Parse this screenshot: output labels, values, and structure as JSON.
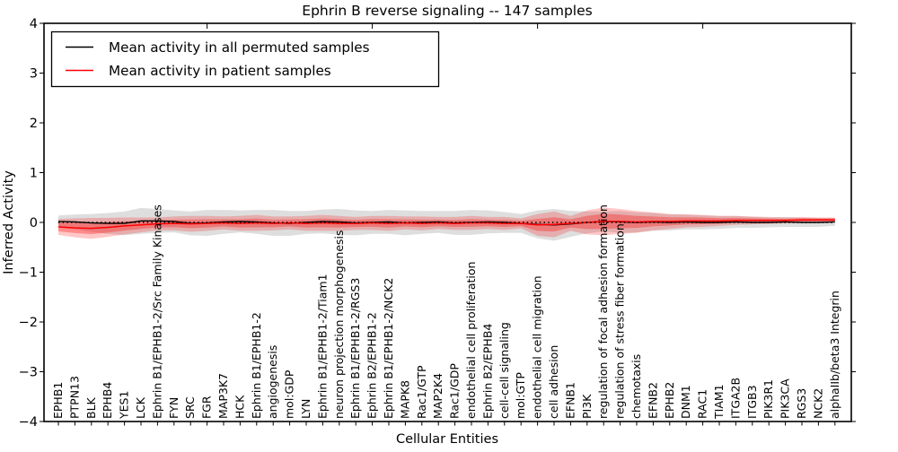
{
  "chart_data": {
    "type": "line",
    "title": "Ephrin B reverse signaling -- 147 samples",
    "xlabel": "Cellular Entities",
    "ylabel": "Inferred Activity",
    "ylim": [
      -4,
      4
    ],
    "yticks": [
      4,
      3,
      2,
      1,
      0,
      -1,
      -2,
      -3,
      -4
    ],
    "top_ticks": [
      10,
      20,
      30,
      40
    ],
    "grid": false,
    "legend_position": "upper left",
    "zero_reference_line": "black dotted at y=0",
    "categories": [
      "EPHB1",
      "PTPN13",
      "BLK",
      "EPHB4",
      "YES1",
      "LCK",
      "Ephrin B1/EPHB1-2/Src Family Kinases",
      "FYN",
      "SRC",
      "FGR",
      "MAP3K7",
      "HCK",
      "Ephrin B1/EPHB1-2",
      "angiogenesis",
      "mol:GDP",
      "LYN",
      "Ephrin B1/EPHB1-2/Tiam1",
      "neuron projection morphogenesis",
      "Ephrin B1/EPHB1-2/RGS3",
      "Ephrin B2/EPHB1-2",
      "Ephrin B1/EPHB1-2/NCK2",
      "MAPK8",
      "Rac1/GTP",
      "MAP2K4",
      "Rac1/GDP",
      "endothelial cell proliferation",
      "Ephrin B2/EPHB4",
      "cell-cell signaling",
      "mol:GTP",
      "endothelial cell migration",
      "cell adhesion",
      "EFNB1",
      "PI3K",
      "regulation of focal adhesion formation",
      "regulation of stress fiber formation",
      "chemotaxis",
      "EFNB2",
      "EPHB2",
      "DNM1",
      "RAC1",
      "TIAM1",
      "ITGA2B",
      "ITGB3",
      "PIK3R1",
      "PIK3CA",
      "RGS3",
      "NCK2",
      "alphaIIb/beta3 Integrin"
    ],
    "series": [
      {
        "name": "Mean activity in all permuted samples",
        "color": "#000000",
        "band_color": "rgba(0,0,0,0.13)",
        "values": [
          0.02,
          0.01,
          -0.01,
          -0.02,
          -0.02,
          0.03,
          0.03,
          0.02,
          -0.02,
          -0.01,
          0.01,
          0.02,
          0.01,
          -0.01,
          -0.02,
          0.0,
          0.02,
          0.01,
          -0.01,
          0.0,
          0.01,
          -0.01,
          0.0,
          0.01,
          -0.01,
          0.0,
          0.01,
          0.0,
          -0.02,
          -0.04,
          -0.05,
          -0.03,
          0.0,
          0.02,
          0.01,
          0.0,
          0.01,
          0.0,
          0.01,
          0.0,
          0.0,
          0.01,
          0.0,
          0.0,
          0.01,
          0.0,
          0.0,
          0.01
        ],
        "std": [
          0.12,
          0.15,
          0.18,
          0.21,
          0.24,
          0.26,
          0.24,
          0.22,
          0.24,
          0.26,
          0.24,
          0.22,
          0.24,
          0.26,
          0.25,
          0.23,
          0.24,
          0.26,
          0.25,
          0.23,
          0.24,
          0.25,
          0.23,
          0.22,
          0.24,
          0.25,
          0.23,
          0.21,
          0.19,
          0.28,
          0.32,
          0.26,
          0.22,
          0.2,
          0.22,
          0.2,
          0.18,
          0.16,
          0.15,
          0.14,
          0.13,
          0.12,
          0.11,
          0.1,
          0.1,
          0.09,
          0.09,
          0.08
        ]
      },
      {
        "name": "Mean activity in patient samples",
        "color": "#ff0000",
        "band_color": "rgba(255,0,0,0.22)",
        "band_inner_color": "rgba(255,0,0,0.30)",
        "values": [
          -0.09,
          -0.11,
          -0.12,
          -0.1,
          -0.07,
          -0.05,
          -0.03,
          -0.02,
          -0.03,
          -0.02,
          -0.01,
          -0.02,
          -0.01,
          -0.02,
          -0.01,
          -0.02,
          -0.01,
          -0.02,
          -0.02,
          -0.01,
          -0.02,
          -0.01,
          -0.02,
          -0.01,
          -0.02,
          -0.01,
          -0.01,
          -0.02,
          -0.02,
          -0.05,
          -0.04,
          -0.02,
          0.0,
          0.02,
          0.02,
          0.01,
          0.02,
          0.02,
          0.03,
          0.03,
          0.03,
          0.04,
          0.04,
          0.04,
          0.04,
          0.05,
          0.05,
          0.05
        ],
        "std": [
          0.16,
          0.19,
          0.21,
          0.19,
          0.17,
          0.15,
          0.13,
          0.14,
          0.16,
          0.15,
          0.13,
          0.15,
          0.16,
          0.14,
          0.13,
          0.15,
          0.16,
          0.15,
          0.13,
          0.14,
          0.15,
          0.13,
          0.14,
          0.12,
          0.13,
          0.14,
          0.12,
          0.13,
          0.1,
          0.22,
          0.26,
          0.15,
          0.24,
          0.28,
          0.25,
          0.22,
          0.18,
          0.15,
          0.13,
          0.12,
          0.1,
          0.09,
          0.08,
          0.07,
          0.06,
          0.06,
          0.05,
          0.05
        ]
      }
    ]
  },
  "colors": {
    "axis": "#000000",
    "background": "#ffffff",
    "patient_line": "#ff0000",
    "permuted_line": "#000000"
  }
}
